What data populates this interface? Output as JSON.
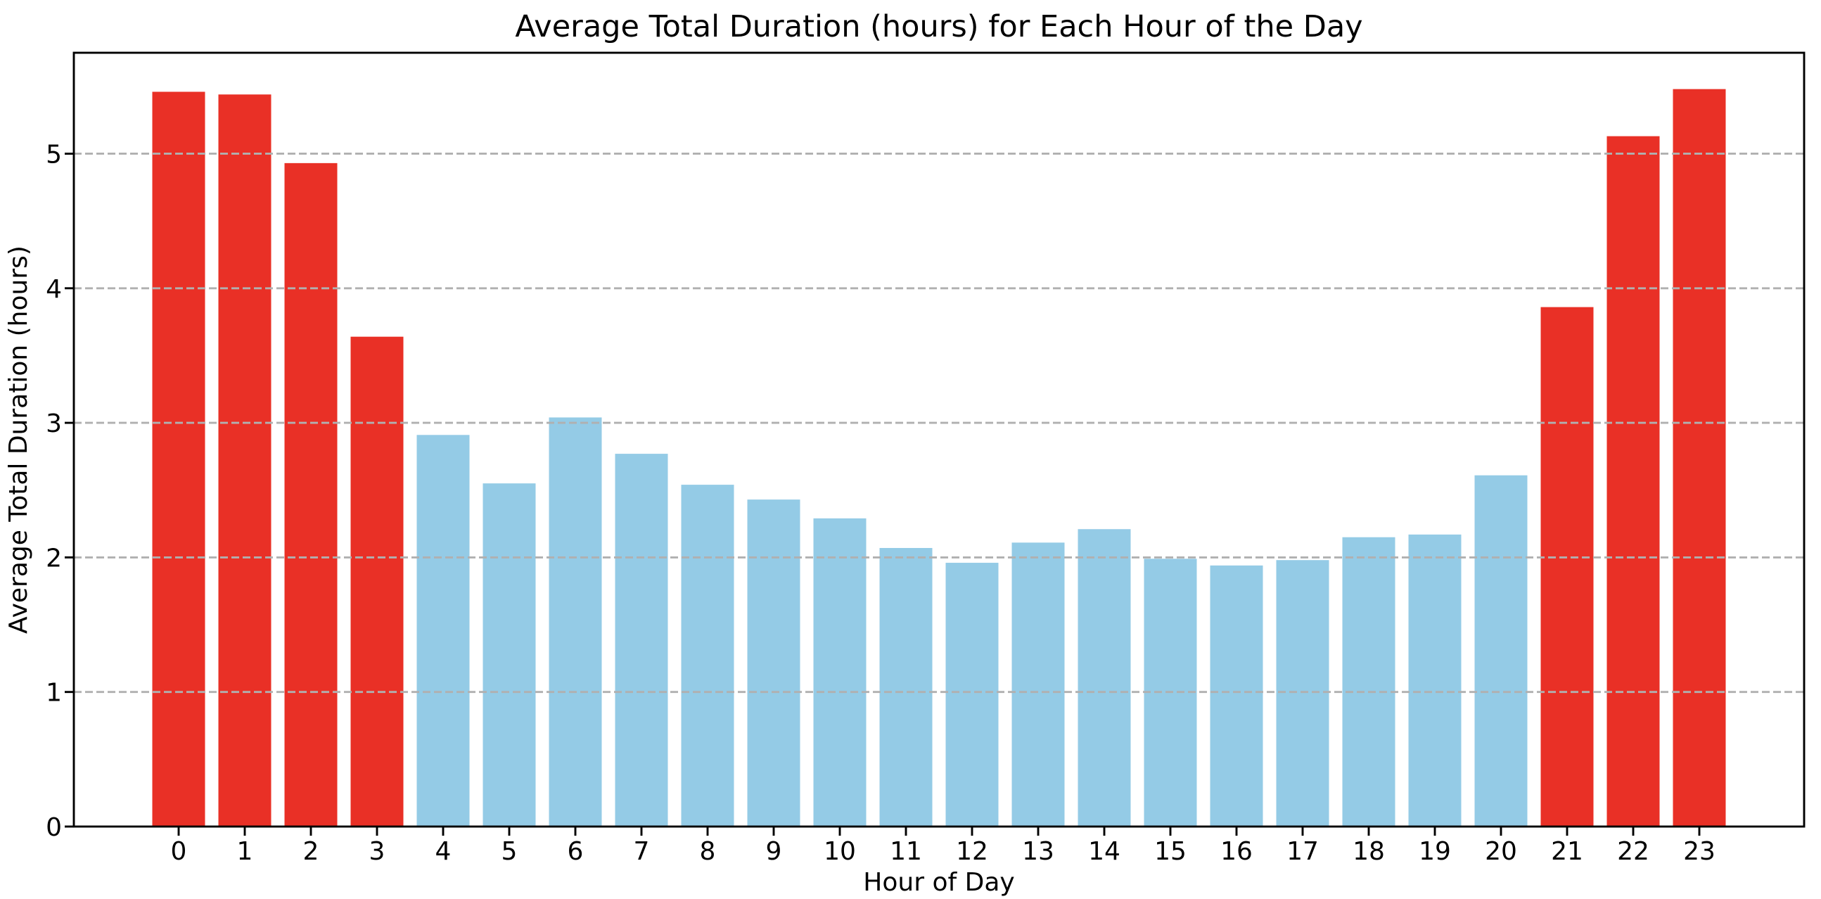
{
  "chart_data": {
    "type": "bar",
    "title": "Average Total Duration (hours) for Each Hour of the Day",
    "xlabel": "Hour of Day",
    "ylabel": "Average Total Duration (hours)",
    "categories": [
      "0",
      "1",
      "2",
      "3",
      "4",
      "5",
      "6",
      "7",
      "8",
      "9",
      "10",
      "11",
      "12",
      "13",
      "14",
      "15",
      "16",
      "17",
      "18",
      "19",
      "20",
      "21",
      "22",
      "23"
    ],
    "values": [
      5.46,
      5.44,
      4.93,
      3.64,
      2.91,
      2.55,
      3.04,
      2.77,
      2.54,
      2.43,
      2.29,
      2.07,
      1.96,
      2.11,
      2.21,
      1.99,
      1.94,
      1.98,
      2.15,
      2.17,
      2.61,
      3.86,
      5.13,
      5.48
    ],
    "highlight_hours": [
      0,
      1,
      2,
      3,
      21,
      22,
      23
    ],
    "highlight_color": "#e93026",
    "base_color": "#94cbe6",
    "ylim": [
      0,
      5.75
    ],
    "yticks": [
      0,
      1,
      2,
      3,
      4,
      5
    ],
    "grid": {
      "axis": "y",
      "style": "dashed",
      "color": "#b0b0b0",
      "on": true
    },
    "legend": "none",
    "background": "#ffffff",
    "spine_color": "#000000",
    "tick_color": "#000000"
  }
}
